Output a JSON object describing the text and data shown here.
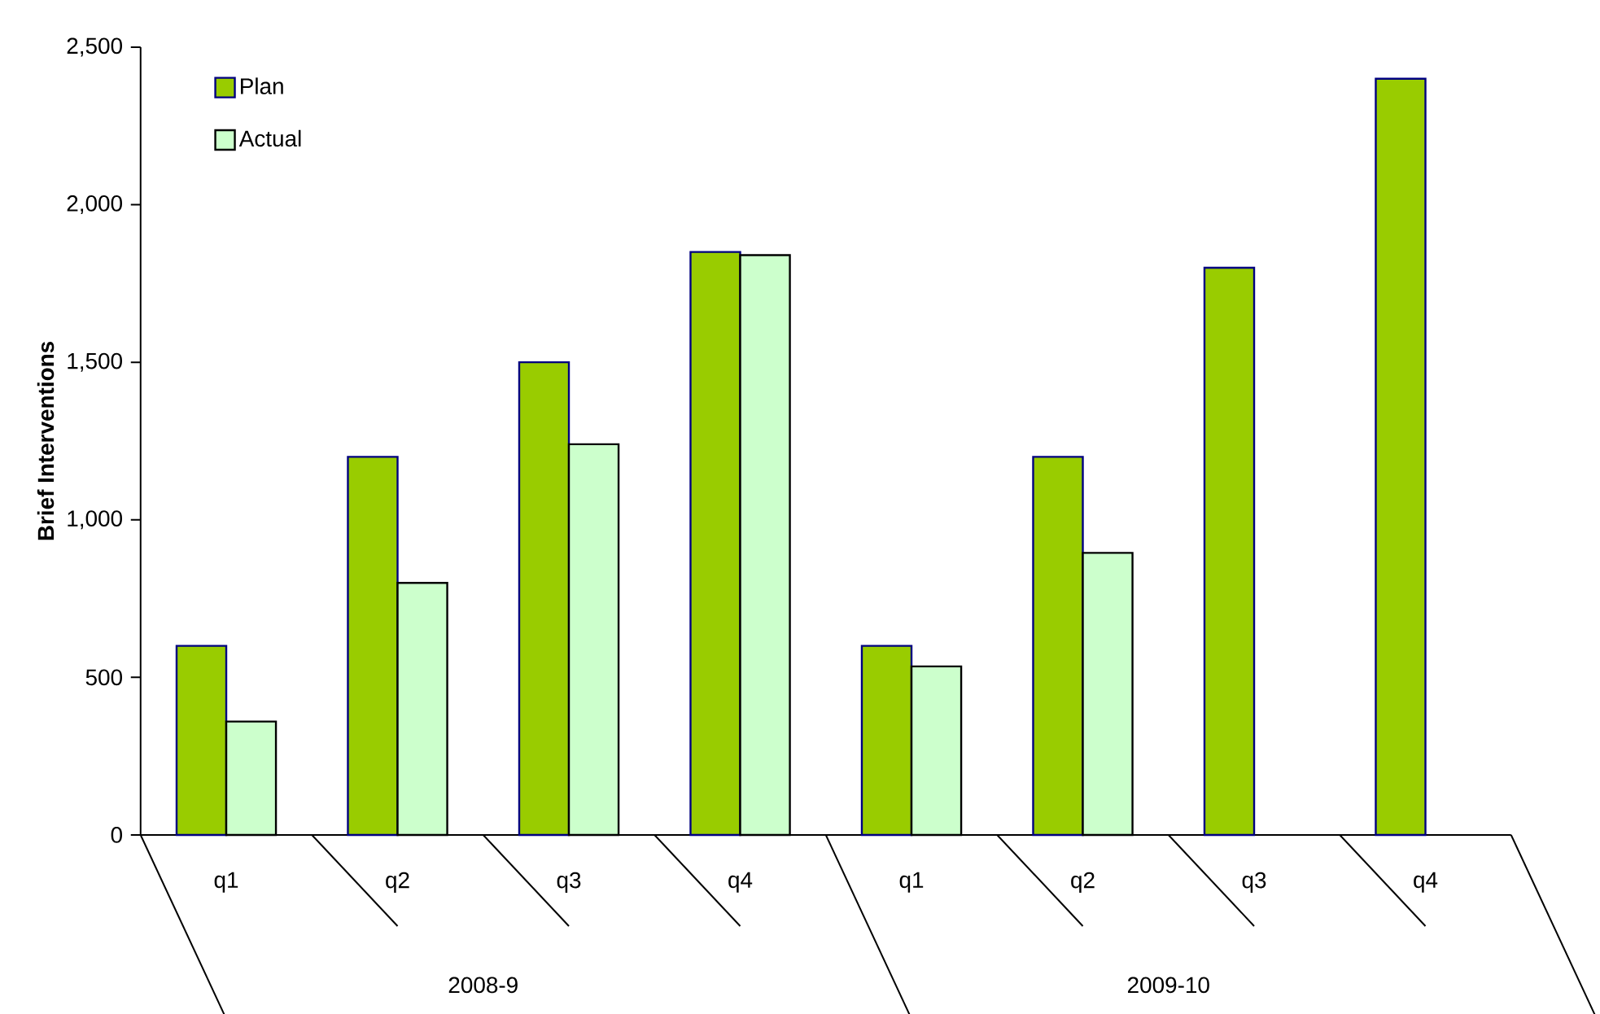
{
  "chart_data": {
    "type": "bar",
    "ylabel": "Brief Interventions",
    "categories": [
      "q1",
      "q2",
      "q3",
      "q4",
      "q1",
      "q2",
      "q3",
      "q4"
    ],
    "series": [
      {
        "name": "Plan",
        "color": "#99cc00",
        "values": [
          600,
          1200,
          1500,
          1850,
          600,
          1200,
          1800,
          2400
        ]
      },
      {
        "name": "Actual",
        "color": "#ccffcc",
        "values": [
          360,
          800,
          1240,
          1840,
          535,
          895,
          null,
          null
        ]
      }
    ],
    "ylim": [
      0,
      2500
    ],
    "yticks": [
      {
        "value": 0,
        "label": "0"
      },
      {
        "value": 500,
        "label": "500"
      },
      {
        "value": 1000,
        "label": "1,000"
      },
      {
        "value": 1500,
        "label": "1,500"
      },
      {
        "value": 2000,
        "label": "2,000"
      },
      {
        "value": 2500,
        "label": "2,500"
      }
    ],
    "annotations": [
      "2008-9",
      "2009-10"
    ],
    "legend": "top left",
    "grid": false
  }
}
